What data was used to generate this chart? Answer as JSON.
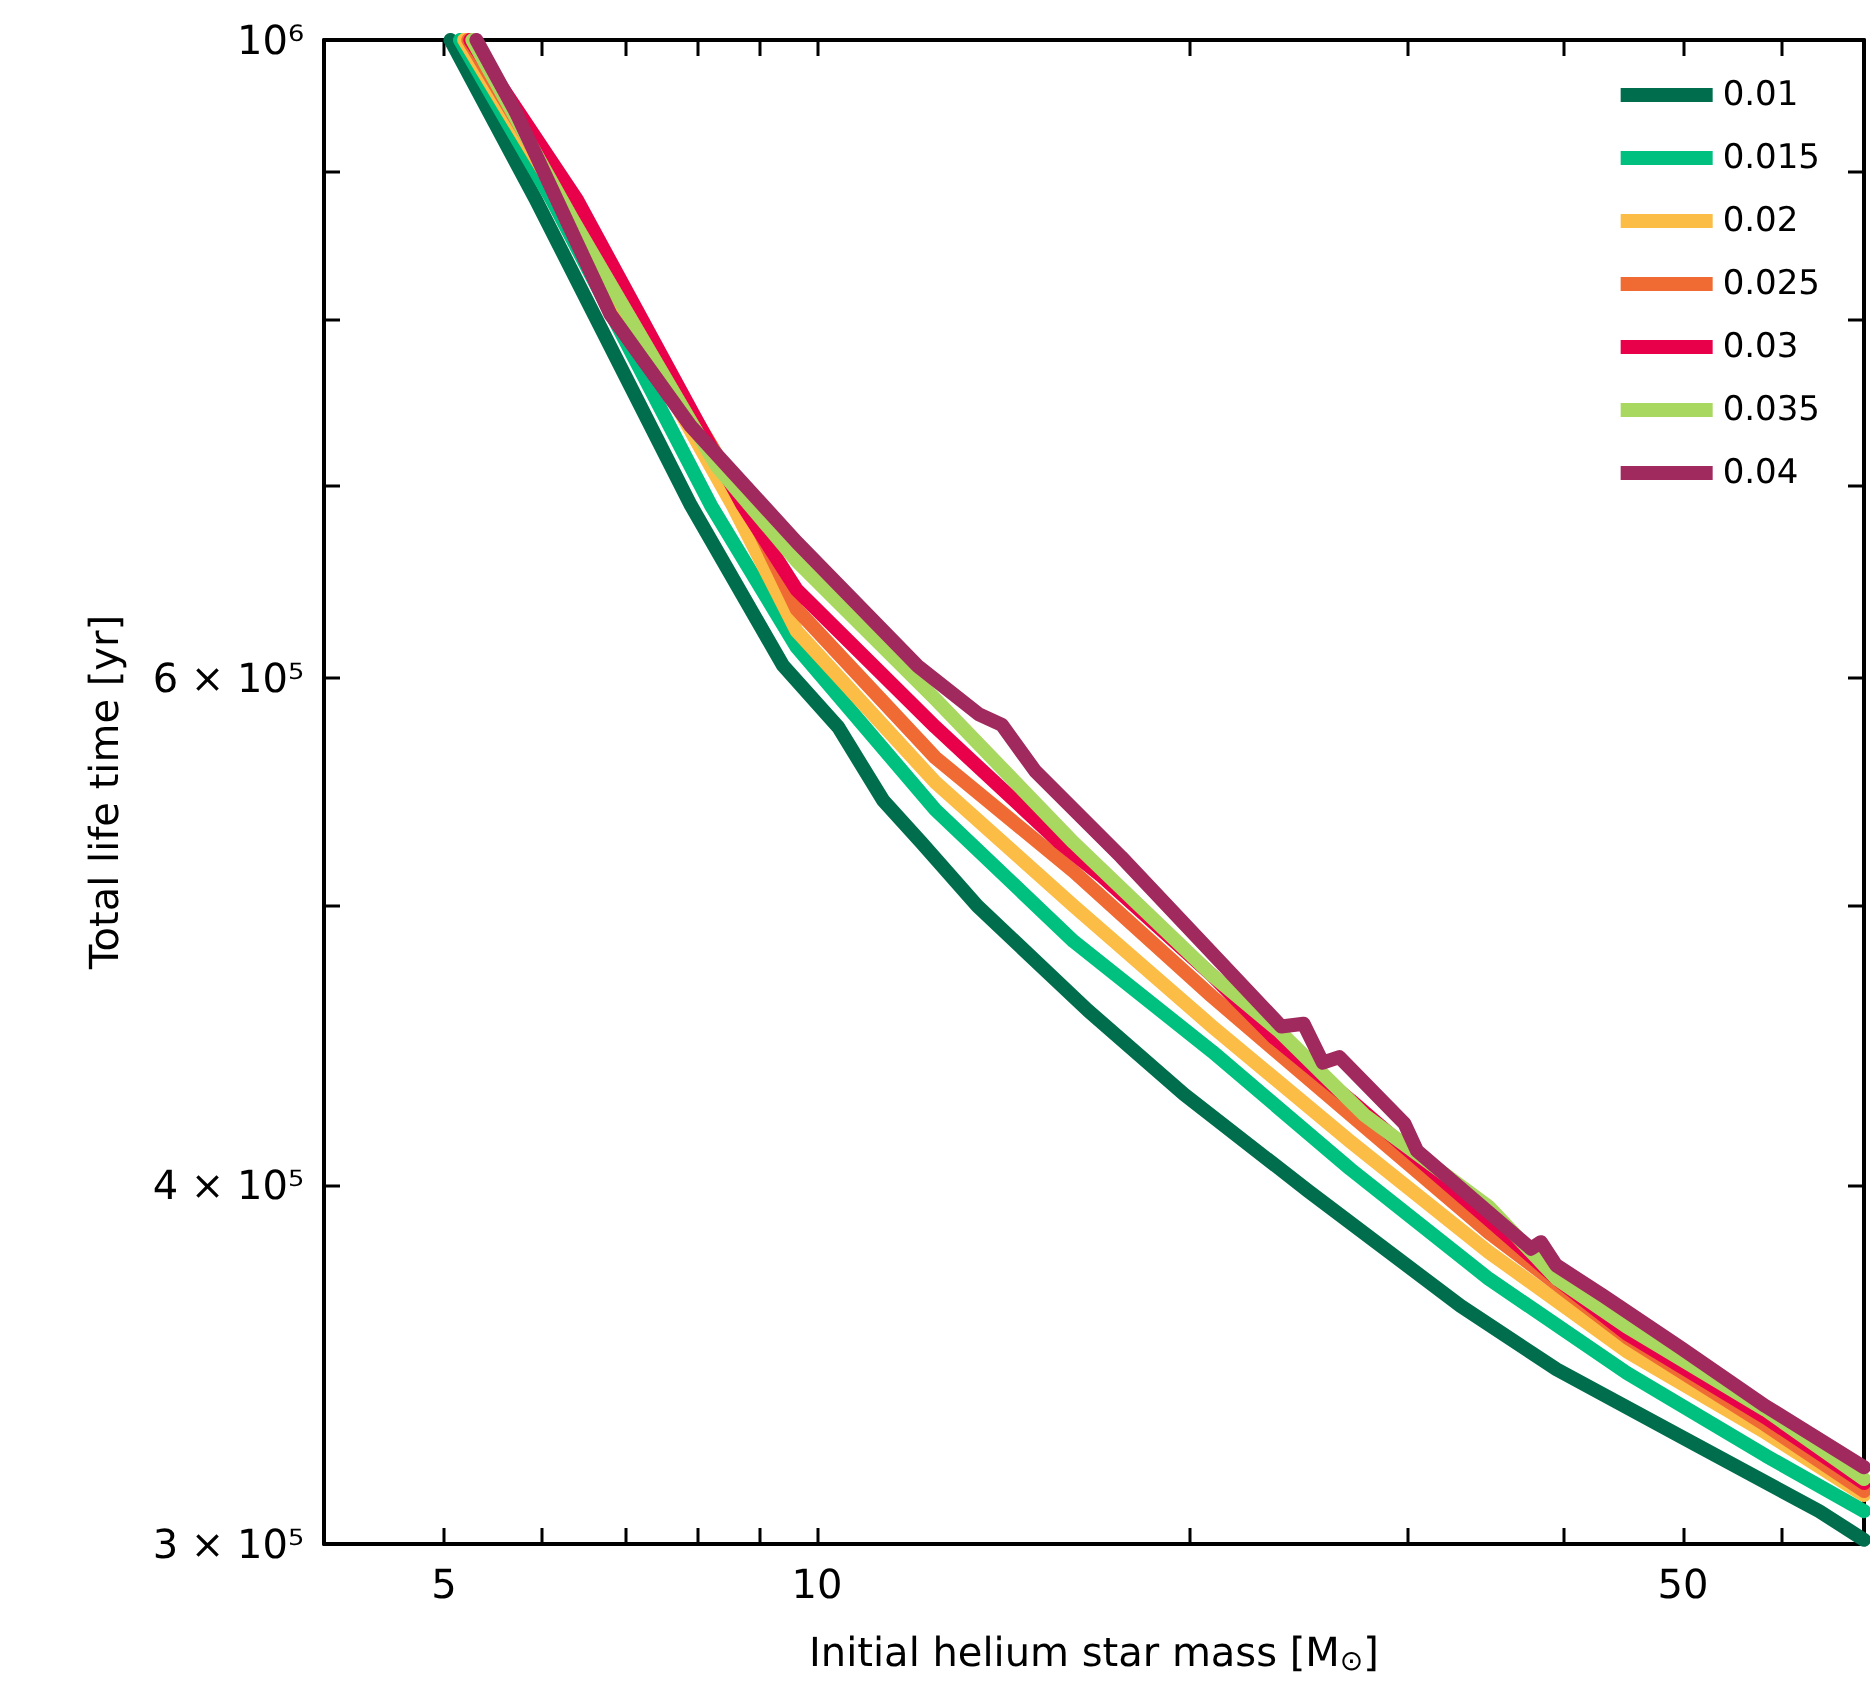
{
  "chart_data": {
    "type": "line",
    "xlabel": "Initial helium star mass [M$_{⊙}$]",
    "ylabel": "Total life time [yr]",
    "log": "xy",
    "grid": false,
    "legend": "top right",
    "marker": "none",
    "line_style": "solid",
    "xlim": [
      4,
      70
    ],
    "ylim": [
      300000,
      1000000
    ],
    "xticks": [
      {
        "value": 5,
        "label": "5"
      },
      {
        "value": 6,
        "label": null
      },
      {
        "value": 7,
        "label": null
      },
      {
        "value": 8,
        "label": null
      },
      {
        "value": 9,
        "label": null
      },
      {
        "value": 10,
        "label": "10"
      },
      {
        "value": 20,
        "label": null
      },
      {
        "value": 30,
        "label": null
      },
      {
        "value": 40,
        "label": null
      },
      {
        "value": 50,
        "label": "50"
      },
      {
        "value": 60,
        "label": null
      },
      {
        "value": 70,
        "label": null
      }
    ],
    "yticks": [
      {
        "value": 300000,
        "label": "3 × 10⁵"
      },
      {
        "value": 400000,
        "label": "4 × 10⁵"
      },
      {
        "value": 500000,
        "label": null
      },
      {
        "value": 600000,
        "label": "6 × 10⁵"
      },
      {
        "value": 700000,
        "label": null
      },
      {
        "value": 800000,
        "label": null
      },
      {
        "value": 900000,
        "label": null
      },
      {
        "value": 1000000,
        "label": "10⁶"
      }
    ],
    "series": [
      {
        "name": "0.01",
        "color": "#006e4c",
        "x": [
          5.06,
          5.93,
          7.91,
          9.39,
          10.4,
          11.31,
          12.14,
          13.47,
          16.53,
          19.78,
          24.91,
          33.07,
          39.54,
          51.1,
          64.4,
          70
        ],
        "values": [
          1000000,
          880000,
          689000,
          606000,
          577000,
          544000,
          526000,
          500000,
          460000,
          430000,
          398000,
          363000,
          345000,
          325000,
          308000,
          301000
        ]
      },
      {
        "name": "0.015",
        "color": "#00c080",
        "x": [
          5.15,
          6.11,
          8.21,
          9.63,
          12.46,
          16.11,
          20.84,
          26.95,
          34.84,
          45.05,
          58.3,
          70
        ],
        "values": [
          1000000,
          880000,
          689000,
          615000,
          540000,
          486000,
          445000,
          405000,
          371000,
          344000,
          322000,
          308000
        ]
      },
      {
        "name": "0.02",
        "color": "#fbbd45",
        "x": [
          5.19,
          6.21,
          8.55,
          9.63,
          12.46,
          16.11,
          20.84,
          26.95,
          34.84,
          45.05,
          58.3,
          70
        ],
        "values": [
          1000000,
          880000,
          689000,
          623000,
          552000,
          500000,
          454000,
          414000,
          379000,
          350000,
          328000,
          312000
        ]
      },
      {
        "name": "0.025",
        "color": "#ef6b33",
        "x": [
          5.23,
          6.25,
          8.78,
          9.63,
          12.46,
          16.11,
          20.84,
          26.95,
          34.84,
          45.05,
          58.3,
          70
        ],
        "values": [
          1000000,
          880000,
          689000,
          634000,
          563000,
          514000,
          465000,
          423000,
          385000,
          354000,
          330000,
          313000
        ]
      },
      {
        "name": "0.03",
        "color": "#e8004a",
        "x": [
          5.25,
          6.4,
          8.71,
          9.63,
          12.46,
          15.7,
          16.98,
          20.84,
          23.38,
          26.95,
          34.84,
          39.54,
          45.05,
          58.3,
          70
        ],
        "values": [
          1000000,
          880000,
          689000,
          644000,
          577000,
          526000,
          512000,
          473000,
          450000,
          428000,
          389000,
          371000,
          355000,
          332000,
          315000
        ]
      },
      {
        "name": "0.035",
        "color": "#a8d860",
        "x": [
          5.27,
          6.35,
          8.3,
          9.63,
          12.46,
          16.11,
          20.84,
          23.65,
          27.65,
          34.84,
          39.54,
          45.05,
          58.3,
          70
        ],
        "values": [
          1000000,
          866000,
          711000,
          659000,
          590000,
          526000,
          473000,
          452000,
          423000,
          393000,
          371000,
          357000,
          334000,
          316000
        ]
      },
      {
        "name": "0.04",
        "color": "#a0295e",
        "x": [
          5.31,
          5.72,
          6.81,
          7.91,
          9.63,
          12.05,
          13.5,
          14.1,
          15.0,
          17.6,
          23.7,
          24.7,
          25.6,
          26.4,
          29.8,
          30.5,
          37.7,
          38.4,
          39.5,
          43.1,
          49.8,
          58.3,
          70
        ],
        "values": [
          1000000,
          943000,
          803000,
          734000,
          669000,
          606000,
          583000,
          578000,
          557000,
          520000,
          454000,
          455000,
          441000,
          443000,
          420000,
          411000,
          380000,
          382000,
          375000,
          366000,
          351000,
          335000,
          319000
        ]
      }
    ]
  }
}
